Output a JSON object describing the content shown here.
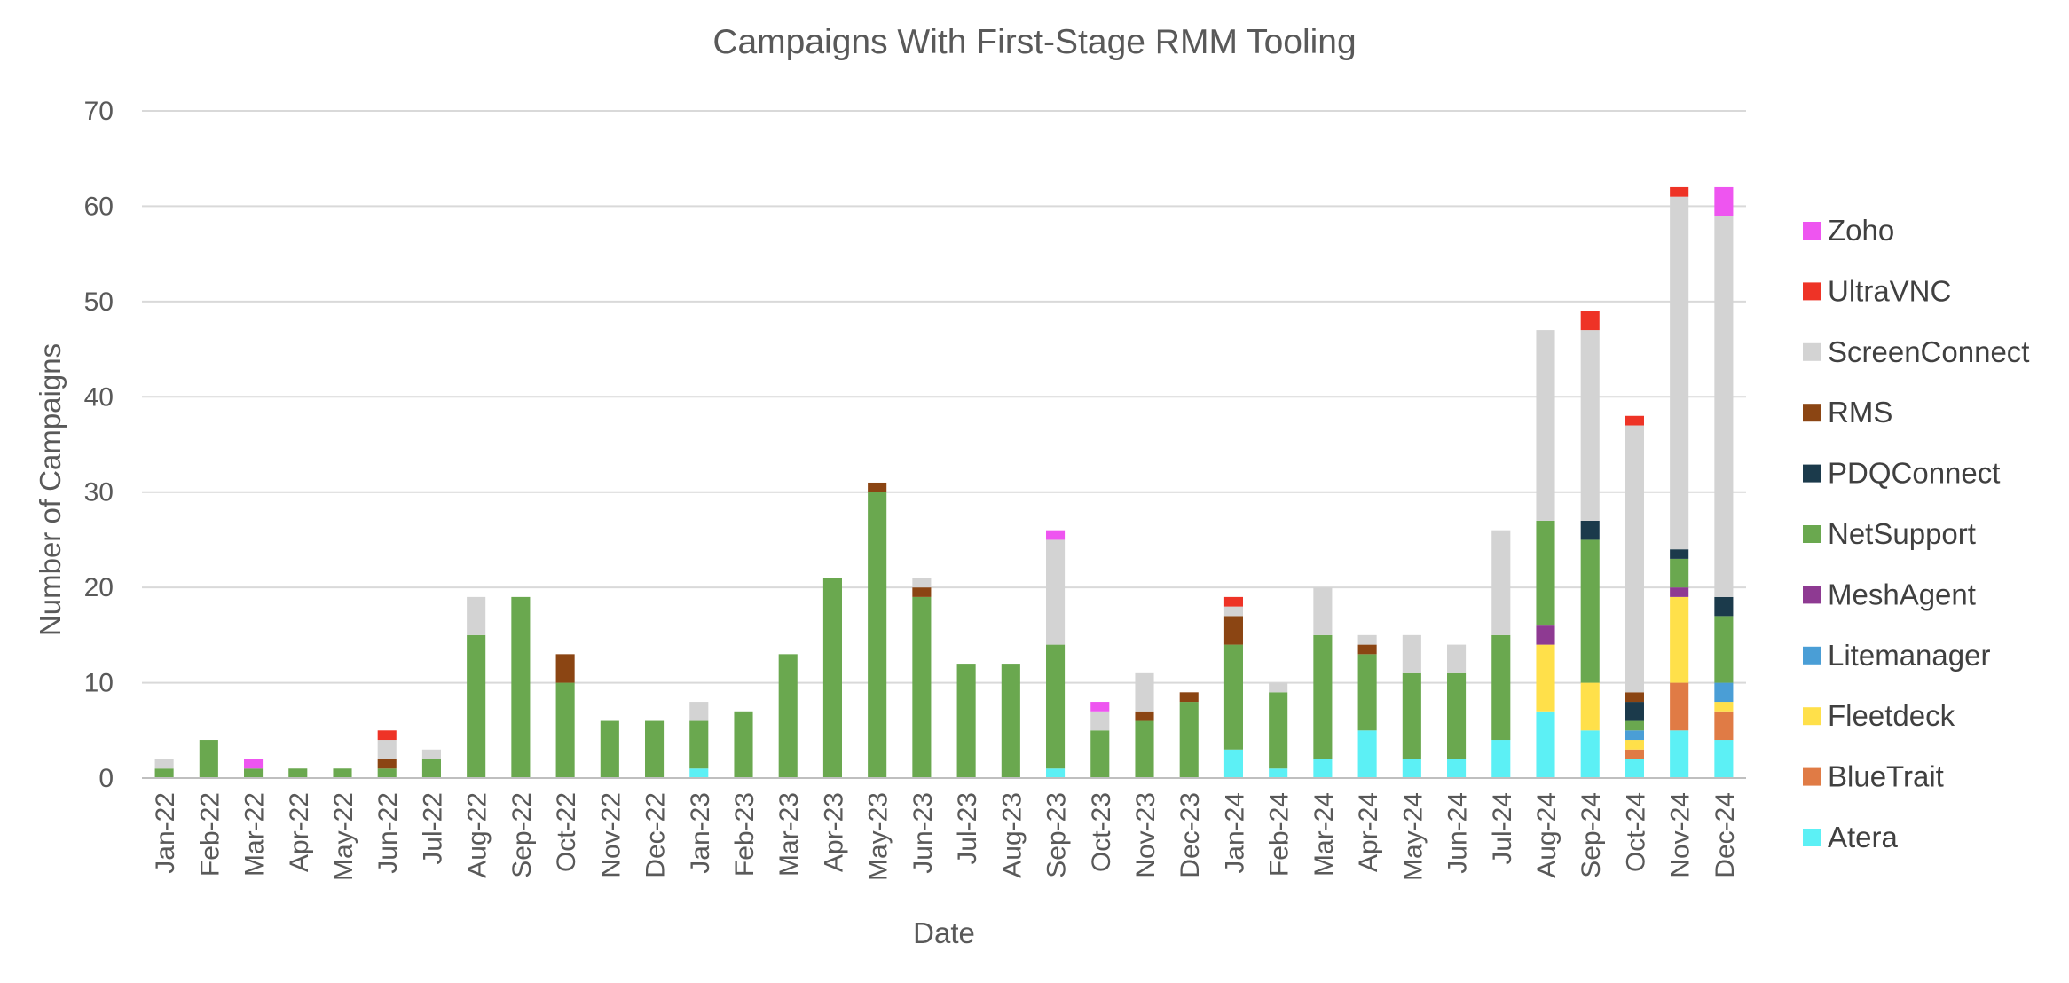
{
  "chart_data": {
    "type": "bar",
    "stacked": true,
    "title": "Campaigns With First-Stage RMM Tooling",
    "xlabel": "Date",
    "ylabel": "Number of Campaigns",
    "ylim": [
      0,
      70
    ],
    "yticks": [
      0,
      10,
      20,
      30,
      40,
      50,
      60,
      70
    ],
    "grid": true,
    "legend_position": "right",
    "categories": [
      "Jan-22",
      "Feb-22",
      "Mar-22",
      "Apr-22",
      "May-22",
      "Jun-22",
      "Jul-22",
      "Aug-22",
      "Sep-22",
      "Oct-22",
      "Nov-22",
      "Dec-22",
      "Jan-23",
      "Feb-23",
      "Mar-23",
      "Apr-23",
      "May-23",
      "Jun-23",
      "Jul-23",
      "Aug-23",
      "Sep-23",
      "Oct-23",
      "Nov-23",
      "Dec-23",
      "Jan-24",
      "Feb-24",
      "Mar-24",
      "Apr-24",
      "May-24",
      "Jun-24",
      "Jul-24",
      "Aug-24",
      "Sep-24",
      "Oct-24",
      "Nov-24",
      "Dec-24"
    ],
    "series": [
      {
        "name": "Atera",
        "color": "#5CF0F5",
        "values": [
          0,
          0,
          0,
          0,
          0,
          0,
          0,
          0,
          0,
          0,
          0,
          0,
          1,
          0,
          0,
          0,
          0,
          0,
          0,
          0,
          1,
          0,
          0,
          0,
          3,
          1,
          2,
          5,
          2,
          2,
          4,
          7,
          5,
          2,
          5,
          4
        ]
      },
      {
        "name": "BlueTrait",
        "color": "#E07B45",
        "values": [
          0,
          0,
          0,
          0,
          0,
          0,
          0,
          0,
          0,
          0,
          0,
          0,
          0,
          0,
          0,
          0,
          0,
          0,
          0,
          0,
          0,
          0,
          0,
          0,
          0,
          0,
          0,
          0,
          0,
          0,
          0,
          0,
          0,
          1,
          5,
          3
        ]
      },
      {
        "name": "Fleetdeck",
        "color": "#FFE04A",
        "values": [
          0,
          0,
          0,
          0,
          0,
          0,
          0,
          0,
          0,
          0,
          0,
          0,
          0,
          0,
          0,
          0,
          0,
          0,
          0,
          0,
          0,
          0,
          0,
          0,
          0,
          0,
          0,
          0,
          0,
          0,
          0,
          7,
          5,
          1,
          9,
          1
        ]
      },
      {
        "name": "Litemanager",
        "color": "#4A9ED6",
        "values": [
          0,
          0,
          0,
          0,
          0,
          0,
          0,
          0,
          0,
          0,
          0,
          0,
          0,
          0,
          0,
          0,
          0,
          0,
          0,
          0,
          0,
          0,
          0,
          0,
          0,
          0,
          0,
          0,
          0,
          0,
          0,
          0,
          0,
          1,
          0,
          2
        ]
      },
      {
        "name": "MeshAgent",
        "color": "#8E3A92",
        "values": [
          0,
          0,
          0,
          0,
          0,
          0,
          0,
          0,
          0,
          0,
          0,
          0,
          0,
          0,
          0,
          0,
          0,
          0,
          0,
          0,
          0,
          0,
          0,
          0,
          0,
          0,
          0,
          0,
          0,
          0,
          0,
          2,
          0,
          0,
          1,
          0
        ]
      },
      {
        "name": "NetSupport",
        "color": "#6AA84F",
        "values": [
          1,
          4,
          1,
          1,
          1,
          1,
          2,
          15,
          19,
          10,
          6,
          6,
          5,
          7,
          13,
          21,
          30,
          19,
          12,
          12,
          13,
          5,
          6,
          8,
          11,
          8,
          13,
          8,
          9,
          9,
          11,
          11,
          15,
          1,
          3,
          7
        ]
      },
      {
        "name": "PDQConnect",
        "color": "#1B3A4B",
        "values": [
          0,
          0,
          0,
          0,
          0,
          0,
          0,
          0,
          0,
          0,
          0,
          0,
          0,
          0,
          0,
          0,
          0,
          0,
          0,
          0,
          0,
          0,
          0,
          0,
          0,
          0,
          0,
          0,
          0,
          0,
          0,
          0,
          2,
          2,
          1,
          2
        ]
      },
      {
        "name": "RMS",
        "color": "#8B4513",
        "values": [
          0,
          0,
          0,
          0,
          0,
          1,
          0,
          0,
          0,
          3,
          0,
          0,
          0,
          0,
          0,
          0,
          1,
          1,
          0,
          0,
          0,
          0,
          1,
          1,
          3,
          0,
          0,
          1,
          0,
          0,
          0,
          0,
          0,
          1,
          0,
          0
        ]
      },
      {
        "name": "ScreenConnect",
        "color": "#D3D3D3",
        "values": [
          1,
          0,
          0,
          0,
          0,
          2,
          1,
          4,
          0,
          0,
          0,
          0,
          2,
          0,
          0,
          0,
          0,
          1,
          0,
          0,
          11,
          2,
          4,
          0,
          1,
          1,
          5,
          1,
          4,
          3,
          11,
          20,
          20,
          28,
          37,
          40
        ]
      },
      {
        "name": "UltraVNC",
        "color": "#EE3326",
        "values": [
          0,
          0,
          0,
          0,
          0,
          1,
          0,
          0,
          0,
          0,
          0,
          0,
          0,
          0,
          0,
          0,
          0,
          0,
          0,
          0,
          0,
          0,
          0,
          0,
          1,
          0,
          0,
          0,
          0,
          0,
          0,
          0,
          2,
          1,
          1,
          0
        ]
      },
      {
        "name": "Zoho",
        "color": "#EE55F0",
        "values": [
          0,
          0,
          1,
          0,
          0,
          0,
          0,
          0,
          0,
          0,
          0,
          0,
          0,
          0,
          0,
          0,
          0,
          0,
          0,
          0,
          1,
          1,
          0,
          0,
          0,
          0,
          0,
          0,
          0,
          0,
          0,
          0,
          0,
          0,
          0,
          3
        ]
      }
    ]
  }
}
